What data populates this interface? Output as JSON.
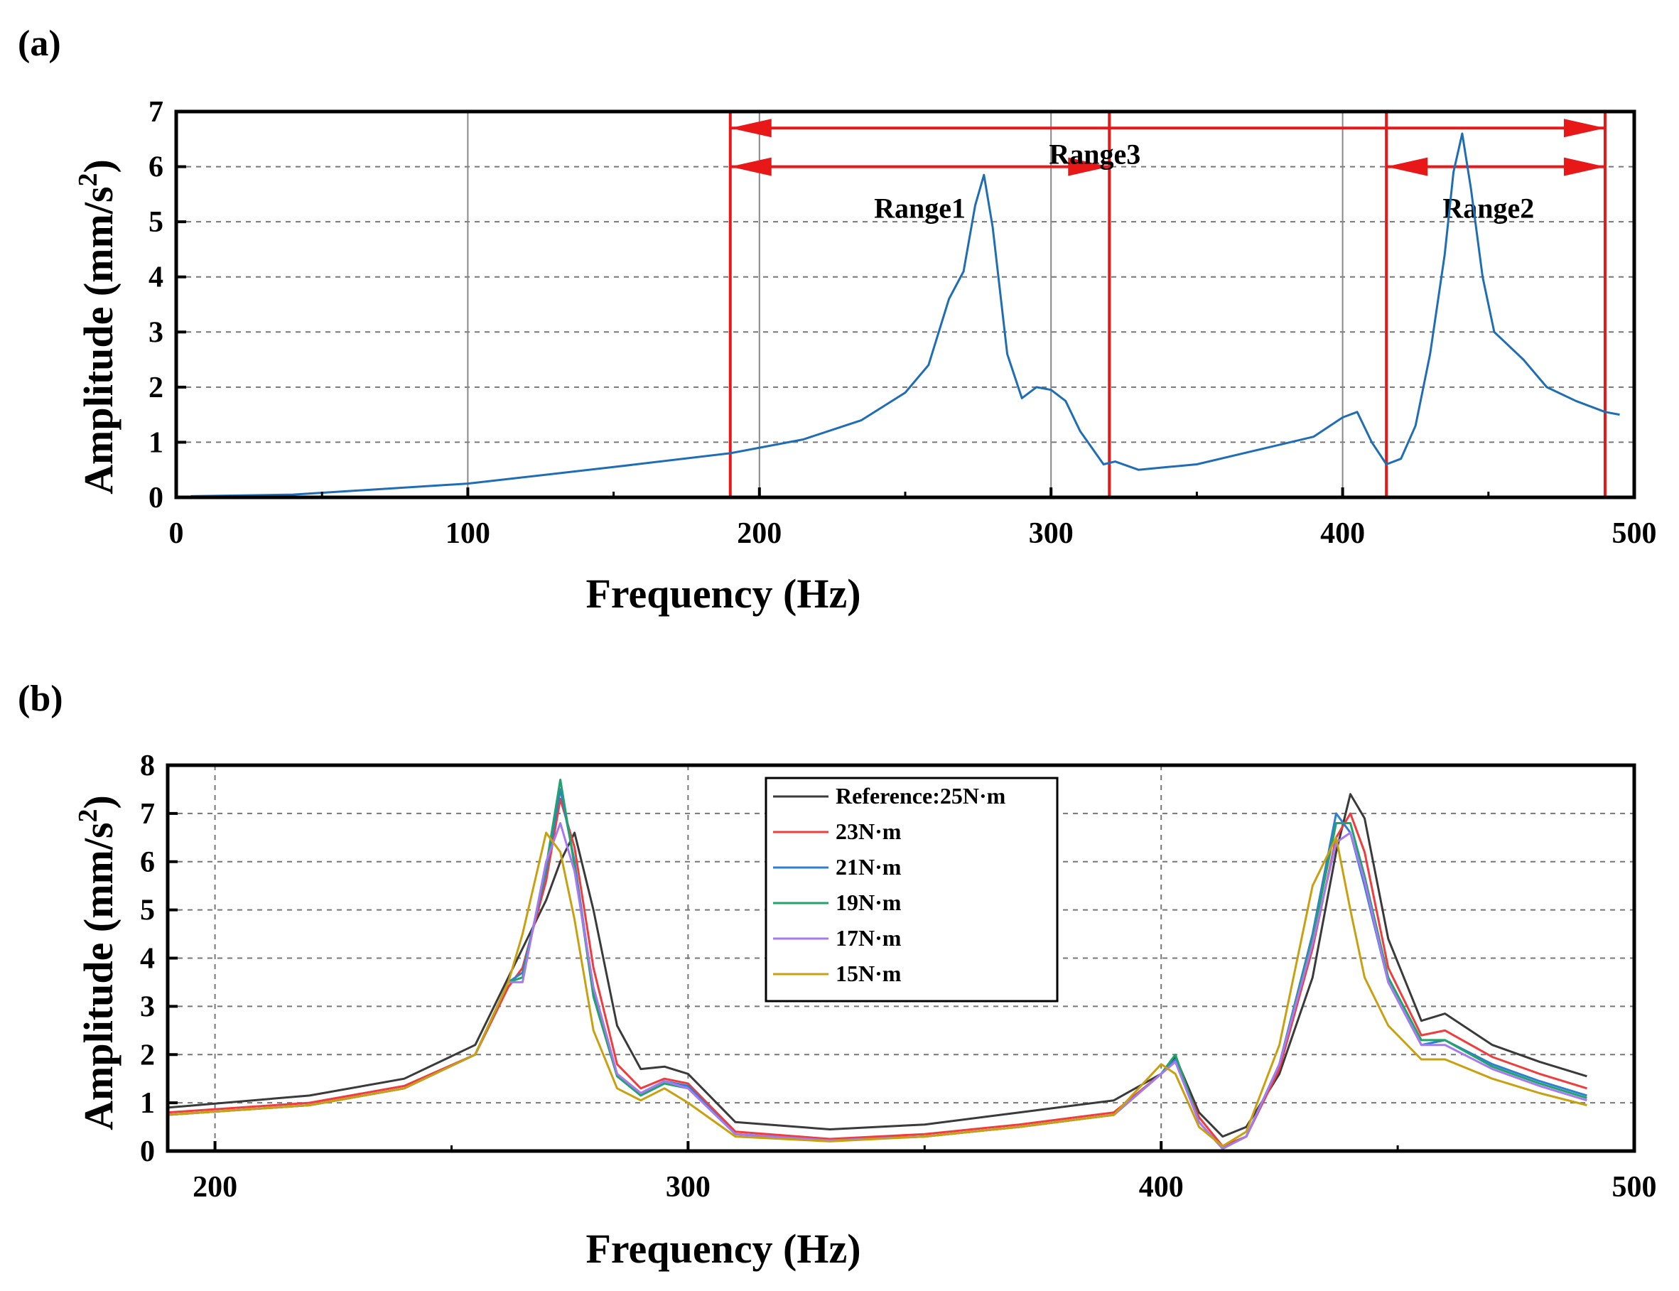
{
  "chart_data": [
    {
      "panel_label": "(a)",
      "type": "line",
      "xlabel": "Frequency (Hz)",
      "ylabel_main": "Amplitude (mm/s",
      "ylabel_sup": "2",
      "ylabel_close": ")",
      "xlim": [
        0,
        500
      ],
      "ylim": [
        0,
        7
      ],
      "xticks": [
        0,
        100,
        200,
        300,
        400,
        500
      ],
      "yticks": [
        0,
        1,
        2,
        3,
        4,
        5,
        6,
        7
      ],
      "grid": "dashed horizontal, solid vertical",
      "series": [
        {
          "name": "spectrum",
          "color": "#1f6db5",
          "x": [
            5,
            40,
            100,
            150,
            190,
            215,
            235,
            250,
            258,
            265,
            270,
            274,
            277,
            280,
            285,
            290,
            295,
            300,
            305,
            310,
            318,
            322,
            330,
            340,
            350,
            370,
            390,
            400,
            405,
            410,
            415,
            420,
            425,
            430,
            435,
            438,
            441,
            444,
            448,
            452,
            456,
            462,
            470,
            480,
            490,
            495
          ],
          "y": [
            0.02,
            0.05,
            0.25,
            0.55,
            0.8,
            1.05,
            1.4,
            1.9,
            2.4,
            3.6,
            4.1,
            5.3,
            5.85,
            4.9,
            2.6,
            1.8,
            2.0,
            1.95,
            1.75,
            1.2,
            0.6,
            0.65,
            0.5,
            0.55,
            0.6,
            0.85,
            1.1,
            1.45,
            1.55,
            1.0,
            0.6,
            0.7,
            1.3,
            2.6,
            4.4,
            5.9,
            6.6,
            5.6,
            4.0,
            3.0,
            2.8,
            2.5,
            2.0,
            1.75,
            1.55,
            1.5
          ]
        }
      ],
      "annotations": [
        {
          "text": "Range1",
          "x_start": 190,
          "x_end": 320,
          "y": 6
        },
        {
          "text": "Range2",
          "x_start": 415,
          "x_end": 490,
          "y": 6
        },
        {
          "text": "Range3",
          "x_start": 190,
          "x_end": 490,
          "y": 6.7
        }
      ],
      "annotation_color": "#e81818"
    },
    {
      "panel_label": "(b)",
      "type": "line",
      "xlabel": "Frequency (Hz)",
      "ylabel_main": "Amplitude (mm/s",
      "ylabel_sup": "2",
      "ylabel_close": ")",
      "xlim": [
        190,
        500
      ],
      "ylim": [
        0,
        8
      ],
      "xticks": [
        200,
        300,
        400,
        500
      ],
      "yticks": [
        0,
        1,
        2,
        3,
        4,
        5,
        6,
        7,
        8
      ],
      "grid": "dashed",
      "legend_position": "top-center",
      "x": [
        190,
        220,
        240,
        255,
        262,
        265,
        270,
        273,
        276,
        280,
        285,
        290,
        295,
        300,
        310,
        330,
        350,
        370,
        390,
        400,
        403,
        408,
        413,
        418,
        425,
        432,
        437,
        440,
        443,
        448,
        455,
        460,
        470,
        480,
        490
      ],
      "series": [
        {
          "name": "Reference:25N·m",
          "color": "#3a3a3a",
          "values": [
            0.9,
            1.15,
            1.5,
            2.2,
            3.6,
            4.2,
            5.2,
            6.0,
            6.6,
            5.0,
            2.6,
            1.7,
            1.75,
            1.6,
            0.6,
            0.45,
            0.55,
            0.8,
            1.05,
            1.6,
            1.95,
            0.8,
            0.3,
            0.5,
            1.6,
            3.6,
            6.2,
            7.4,
            6.9,
            4.4,
            2.7,
            2.85,
            2.2,
            1.85,
            1.55
          ]
        },
        {
          "name": "23N·m",
          "color": "#f03c3c",
          "values": [
            0.8,
            1.0,
            1.35,
            2.0,
            3.4,
            3.8,
            5.6,
            7.3,
            6.3,
            3.8,
            1.8,
            1.3,
            1.5,
            1.4,
            0.4,
            0.25,
            0.35,
            0.55,
            0.8,
            1.6,
            1.85,
            0.7,
            0.1,
            0.3,
            1.7,
            4.2,
            6.5,
            7.0,
            6.2,
            3.8,
            2.4,
            2.5,
            1.95,
            1.6,
            1.3
          ]
        },
        {
          "name": "21N·m",
          "color": "#2e7fd4",
          "values": [
            0.75,
            0.95,
            1.3,
            2.0,
            3.5,
            3.7,
            5.8,
            7.5,
            6.0,
            3.3,
            1.6,
            1.2,
            1.45,
            1.35,
            0.35,
            0.22,
            0.3,
            0.5,
            0.75,
            1.6,
            1.9,
            0.6,
            0.05,
            0.3,
            1.8,
            4.5,
            7.0,
            6.6,
            5.5,
            3.5,
            2.2,
            2.3,
            1.8,
            1.45,
            1.15
          ]
        },
        {
          "name": "19N·m",
          "color": "#21a36b",
          "values": [
            0.75,
            0.95,
            1.3,
            2.0,
            3.5,
            3.6,
            5.9,
            7.7,
            5.9,
            3.2,
            1.55,
            1.15,
            1.4,
            1.3,
            0.35,
            0.22,
            0.3,
            0.5,
            0.75,
            1.6,
            2.0,
            0.6,
            0.05,
            0.3,
            1.8,
            4.4,
            6.8,
            6.8,
            5.7,
            3.6,
            2.3,
            2.3,
            1.75,
            1.4,
            1.1
          ]
        },
        {
          "name": "17N·m",
          "color": "#a878f0",
          "values": [
            0.75,
            0.95,
            1.3,
            2.0,
            3.5,
            3.5,
            6.0,
            6.8,
            5.8,
            3.4,
            1.6,
            1.2,
            1.45,
            1.3,
            0.35,
            0.22,
            0.3,
            0.5,
            0.75,
            1.6,
            1.85,
            0.6,
            0.05,
            0.3,
            1.8,
            4.3,
            6.4,
            6.6,
            5.6,
            3.5,
            2.2,
            2.2,
            1.7,
            1.35,
            1.05
          ]
        },
        {
          "name": "15N·m",
          "color": "#c9a010",
          "values": [
            0.75,
            0.95,
            1.3,
            2.0,
            3.5,
            4.5,
            6.6,
            6.2,
            4.8,
            2.5,
            1.3,
            1.05,
            1.3,
            1.0,
            0.3,
            0.2,
            0.3,
            0.5,
            0.75,
            1.8,
            1.6,
            0.5,
            0.1,
            0.4,
            2.2,
            5.5,
            6.5,
            5.0,
            3.6,
            2.6,
            1.9,
            1.9,
            1.5,
            1.2,
            0.95
          ]
        }
      ]
    }
  ]
}
